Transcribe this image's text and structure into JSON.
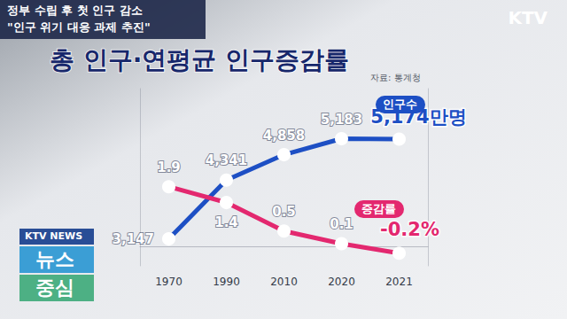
{
  "header": {
    "lines": [
      "정부 수립 후 첫 인구 감소",
      "\"인구 위기 대응 과제 추진\""
    ]
  },
  "logo": "KTV",
  "badge": [
    "KTV NEWS",
    "뉴스",
    "중심"
  ],
  "chart_data": {
    "type": "line",
    "title": "총 인구·연평균 인구증감률",
    "subtitle": "자료: 통계청",
    "categories": [
      "1970",
      "1990",
      "2010",
      "2020",
      "2021"
    ],
    "series": [
      {
        "name": "인구수",
        "color": "#1d4fc4",
        "marker": "circle",
        "values": [
          3147,
          4341,
          4858,
          5183,
          5174
        ],
        "value_labels": [
          "3,147",
          "4,341",
          "4,858",
          "5,183",
          "5,174만명"
        ]
      },
      {
        "name": "증감률",
        "color": "#e3286f",
        "marker": "circle",
        "axis": "y2",
        "values": [
          1.9,
          1.4,
          0.5,
          0.1,
          -0.2
        ],
        "value_labels": [
          "1.9",
          "1.4",
          "0.5",
          "0.1",
          "-0.2%"
        ]
      }
    ],
    "ylim": [
      2600,
      6200
    ],
    "y2lim": [
      -0.6,
      5
    ],
    "data_labels": true,
    "tick_labels": "x",
    "grid": false
  }
}
